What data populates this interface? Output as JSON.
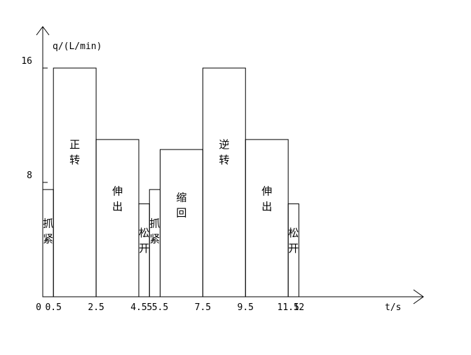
{
  "chart_data": {
    "type": "bar",
    "xlabel": "t/s",
    "ylabel": "q/(L/min)",
    "ylim": [
      0,
      18
    ],
    "xlim": [
      0,
      15
    ],
    "grid": false,
    "x_ticks": [
      "0",
      "0.5",
      "2.5",
      "4.5",
      "5",
      "5.5",
      "7.5",
      "9.5",
      "11.5",
      "12"
    ],
    "y_ticks": [
      "8",
      "16"
    ],
    "bars": [
      {
        "x0": 0,
        "x1": 0.5,
        "value": 7.5,
        "label": "抓紧"
      },
      {
        "x0": 0.5,
        "x1": 2.5,
        "value": 16,
        "label": "正转"
      },
      {
        "x0": 2.5,
        "x1": 4.5,
        "value": 11,
        "label": "伸出"
      },
      {
        "x0": 4.5,
        "x1": 5,
        "value": 6.5,
        "label": "松开"
      },
      {
        "x0": 5,
        "x1": 5.5,
        "value": 7.5,
        "label": "抓紧"
      },
      {
        "x0": 5.5,
        "x1": 7.5,
        "value": 10.3,
        "label": "缩回"
      },
      {
        "x0": 7.5,
        "x1": 9.5,
        "value": 16,
        "label": "逆转"
      },
      {
        "x0": 9.5,
        "x1": 11.5,
        "value": 11,
        "label": "伸出"
      },
      {
        "x0": 11.5,
        "x1": 12,
        "value": 6.5,
        "label": "松开"
      }
    ]
  }
}
